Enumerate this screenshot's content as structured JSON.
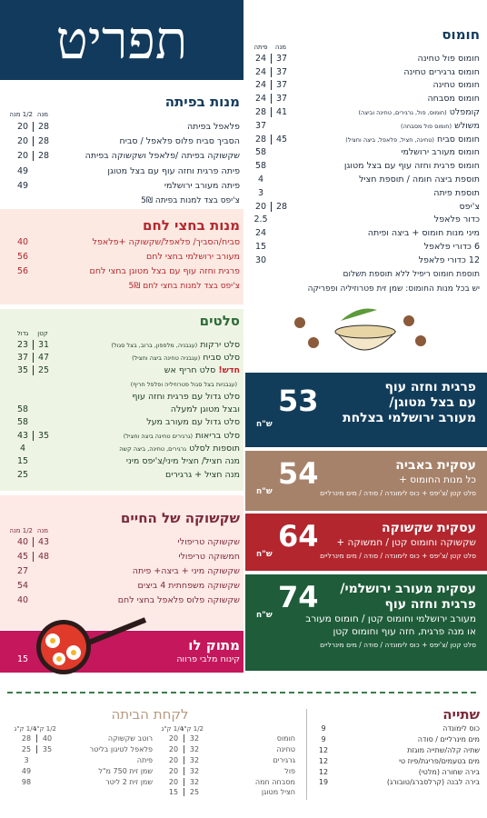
{
  "title": "תפריט",
  "hummus": {
    "title": "חומוס",
    "headers": [
      "מנה",
      "פיתה"
    ],
    "rows": [
      {
        "name": "חומוס פול טחינה",
        "prices": [
          37,
          24
        ]
      },
      {
        "name": "חומוס גרגירים טחינה",
        "prices": [
          37,
          24
        ]
      },
      {
        "name": "חומוס טחינה",
        "prices": [
          37,
          24
        ]
      },
      {
        "name": "חומוס מסבחה",
        "prices": [
          37,
          24
        ]
      },
      {
        "name": "קומפלט",
        "note": "(חומוס, פול, גרגירים, טחינה וביצה)",
        "prices": [
          41,
          28
        ]
      },
      {
        "name": "משולש",
        "note": "(חומוס פול מסבחה)",
        "prices": [
          37
        ]
      },
      {
        "name": "חומוס סביח",
        "note": "(טחינה, חציל, פלאפל, ביצה וחציל)",
        "prices": [
          45,
          28
        ]
      },
      {
        "name": "חומוס מעורב ירושלמי",
        "prices": [
          58
        ]
      },
      {
        "name": "חומוס פרגית וחזה עוף עם בצל מטוגן",
        "prices": [
          58
        ]
      },
      {
        "name": "תוספת ביצה חומה / תוספת חציל",
        "prices": [
          4
        ]
      },
      {
        "name": "תוספת פיתה",
        "prices": [
          3
        ]
      },
      {
        "name": "צ'יפס",
        "prices": [
          28,
          20
        ]
      },
      {
        "name": "כדור פלאפל",
        "prices": [
          2.5
        ]
      },
      {
        "name": "מיני מנות חומוס + ביצה ופיתה",
        "prices": [
          24
        ]
      },
      {
        "name": "6 כדורי פלאפל",
        "prices": [
          15
        ]
      },
      {
        "name": "12 כדורי פלאפל",
        "prices": [
          30
        ]
      }
    ],
    "footnotes": [
      "תוספת חומוס ריפיל ללא תוספת תשלום",
      "יש בכל מנות החומוס: שמן זית פטרוזיליה ופפריקה"
    ]
  },
  "pita": {
    "title": "מנות בפיתה",
    "headers": [
      "מנה",
      "1/2 מנה"
    ],
    "rows": [
      {
        "name": "פלאפל בפיתה",
        "prices": [
          28,
          20
        ]
      },
      {
        "name": "הסביך סביח פלוס פלאפל / סביח",
        "prices": [
          28,
          20
        ]
      },
      {
        "name": "שקשוקה בפיתה /פלאפל ושקשוקה בפיתה",
        "prices": [
          28,
          20
        ]
      },
      {
        "name": "פיתה פרגית וחזה עוף עם בצל מטוגן",
        "prices": [
          49
        ]
      },
      {
        "name": "פיתה מעורב ירושלמי",
        "prices": [
          49
        ]
      }
    ],
    "footnotes": [
      "צ'יפס בצד למנות בפיתה 5₪"
    ]
  },
  "half_bread": {
    "title": "מנות בחצי לחם",
    "rows": [
      {
        "name": "סביח/הסביך/ פלאפל/שקשוקה +פלאפל",
        "prices": [
          40
        ]
      },
      {
        "name": "מעורב ירושלמי בחצי לחם",
        "prices": [
          56
        ]
      },
      {
        "name": "פרגית וחזה עוף עם בצל מטוגן בחצי לחם",
        "prices": [
          56
        ]
      }
    ],
    "footnotes": [
      "צ'יפס בצד למנות בחצי לחם 5₪"
    ]
  },
  "salads": {
    "title": "סלטים",
    "headers": [
      "קטן",
      "גדול"
    ],
    "rows": [
      {
        "name": "סלט ירקות",
        "note": "(עגבניה, מלפפון, ברוב, בצל סגול)",
        "prices": [
          31,
          23
        ]
      },
      {
        "name": "סלט סביח",
        "note": "(עגבניה טחינה ביצה וחציל)",
        "prices": [
          47,
          37
        ]
      },
      {
        "tag": "חדש!",
        "name": "סלט חריף אש",
        "prices": [
          25,
          35
        ]
      },
      {
        "note": "(עגבניות בצל סגול פטרוזיליה ופלפל חריף)"
      },
      {
        "name": "סלט גדול עם פרגית וחזה עוף"
      },
      {
        "name": "ובצל מטוגן למעלה",
        "prices": [
          58
        ]
      },
      {
        "name": "סלט גדול עם מעורב מעל",
        "prices": [
          58
        ]
      },
      {
        "name": "סלט בריאות",
        "note": "(גרגירים טחינה ביצה וחציל)",
        "prices": [
          35,
          43
        ]
      },
      {
        "name": "תוספות לסלט",
        "note": "גרגירים, טחינה, ביצה קשה",
        "prices": [
          4
        ]
      },
      {
        "name": "מנה חציל/ חציל מיני/צ'יפס מיני",
        "prices": [
          15
        ]
      },
      {
        "name": "מנה חציל + גרגירים",
        "prices": [
          25
        ]
      }
    ]
  },
  "shakshuka": {
    "title": "שקשוקה של החיים",
    "headers": [
      "מנה",
      "1/2 מנה"
    ],
    "rows": [
      {
        "name": "שקשוקה טריפולי",
        "prices": [
          43,
          40
        ]
      },
      {
        "name": "חמשוקה טריפולי",
        "prices": [
          48,
          45
        ]
      },
      {
        "name": "שקשוקה מיני + ביצה+ פיתה",
        "prices": [
          27
        ]
      },
      {
        "name": "שקשוקה משפחתית 4 ביצים",
        "prices": [
          54
        ]
      },
      {
        "name": "שקשוקה פלוס פלאפל בחצי לחם",
        "prices": [
          40
        ]
      }
    ]
  },
  "sweet": {
    "title": "מתוק לו",
    "rows": [
      {
        "name": "קינוח מלבי פרווה",
        "prices": [
          15
        ]
      }
    ]
  },
  "deals": [
    {
      "title": [
        "פרגית וחזה עוף",
        "עם בצל מטוגן/",
        "מעורב ירושלמי בצלחת"
      ],
      "price": 53,
      "currency": "ש\"ח"
    },
    {
      "title": [
        "עסקית באביה"
      ],
      "desc": [
        "כל מנות החומוס +"
      ],
      "extras": "סלט קטן /צ'יפס + כוס לימונדה / סודה / מים מינרליים",
      "price": 54,
      "currency": "ש\"ח"
    },
    {
      "title": [
        "עסקית שקשוקה"
      ],
      "desc": [
        "שקשוקה וחומוס קטן / חמשוקה +"
      ],
      "extras": "סלט קטן /צ'יפס + כוס לימונדה / סודה / מים מינרליים",
      "price": 64,
      "currency": "ש\"ח"
    },
    {
      "title": [
        "עסקית מעורב ירושלמי/",
        "פרגית וחזה עוף"
      ],
      "desc": [
        "מעורב ירושלמי וחומוס קטן / חומוס מעורב",
        "או מנה פרגית, חזה עוף וחומוס קטן"
      ],
      "extras": "סלט קטן /צ'יפס + כוס לימונדה / סודה / מים מינרליים",
      "price": 74,
      "currency": "ש\"ח"
    }
  ],
  "drinks": {
    "title": "שתייה",
    "rows": [
      {
        "name": "כוס לימונדה",
        "prices": [
          9
        ]
      },
      {
        "name": "מים מינרליים / סודה",
        "prices": [
          9
        ]
      },
      {
        "name": "שתיה קלה/שתייה מוגזת",
        "prices": [
          12
        ]
      },
      {
        "name": "מים בטעמים/פריגת/פיוז טי",
        "prices": [
          12
        ]
      },
      {
        "name": "בירה שחורה (מלטי)",
        "prices": [
          12
        ]
      },
      {
        "name": "בירה לבנה (קרלסברג/טובורג)",
        "prices": [
          19
        ]
      }
    ]
  },
  "take_home": {
    "title": "לקחת הביתה",
    "tables": [
      {
        "headers": [
          "1/2 ק\"ג",
          "1/4 ק\"ג"
        ],
        "rows": [
          {
            "name": "חומוס",
            "prices": [
              32,
              20
            ]
          },
          {
            "name": "טחינה",
            "prices": [
              32,
              20
            ]
          },
          {
            "name": "גרגירים",
            "prices": [
              32,
              20
            ]
          },
          {
            "name": "פול",
            "prices": [
              32,
              20
            ]
          },
          {
            "name": "מסבחה חמה",
            "prices": [
              32,
              20
            ]
          },
          {
            "name": "חציל מטוגן",
            "prices": [
              25,
              15
            ]
          }
        ]
      },
      {
        "headers": [
          "1/2 ק\"ג",
          "1/4 ק\"ג"
        ],
        "rows": [
          {
            "name": "רוטב שקשוקה",
            "prices": [
              40,
              28
            ]
          },
          {
            "name": "פלאפל לטיגון בליטר",
            "prices": [
              35,
              25
            ]
          },
          {
            "name": "פיתה",
            "prices": [
              3
            ]
          },
          {
            "name": "שמן זית 750 מ\"ל",
            "prices": [
              49
            ]
          },
          {
            "name": "שמן זית 2 ליטר",
            "prices": [
              98
            ]
          }
        ]
      }
    ]
  }
}
